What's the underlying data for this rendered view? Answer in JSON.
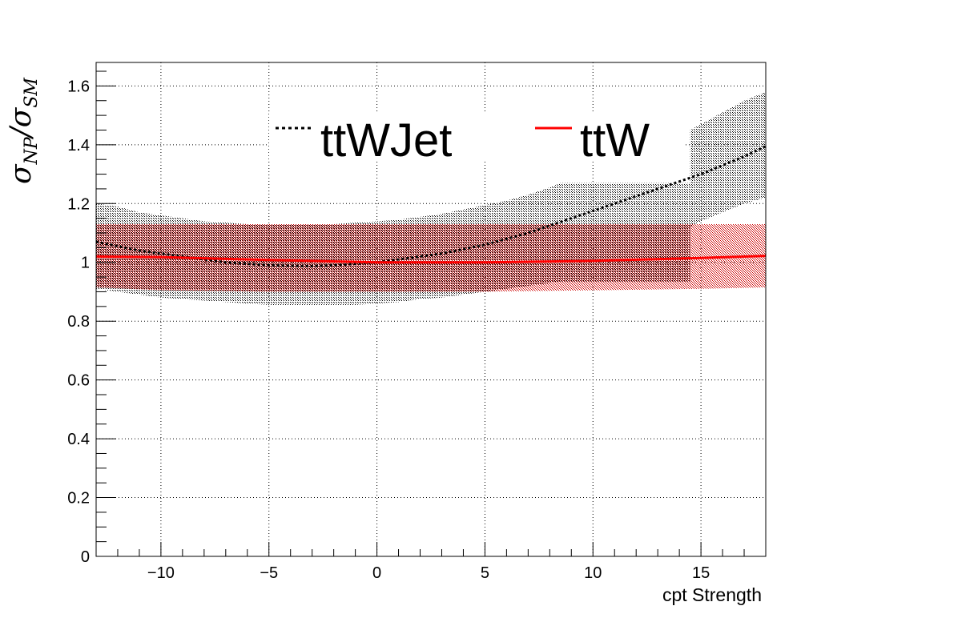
{
  "chart_data": {
    "type": "line",
    "xlabel": "cpt Strength",
    "ylabel": {
      "symbol": "σ",
      "sub1": "NP",
      "slash": "/",
      "sub2": "SM"
    },
    "xlim": [
      -13,
      18
    ],
    "ylim": [
      0,
      1.68
    ],
    "x_ticks": [
      -10,
      -5,
      0,
      5,
      10,
      15
    ],
    "x_tick_labels": [
      "−10",
      "−5",
      "0",
      "5",
      "10",
      "15"
    ],
    "y_ticks": [
      0,
      0.2,
      0.4,
      0.6,
      0.8,
      1,
      1.2,
      1.4,
      1.6
    ],
    "y_tick_labels": [
      "0",
      "0.2",
      "0.4",
      "0.6",
      "0.8",
      "1",
      "1.2",
      "1.4",
      "1.6"
    ],
    "grid": true,
    "legend_position": "top",
    "series": [
      {
        "name": "ttWJet",
        "color": "#000000",
        "line_style": "dotted",
        "band_color": "#000000",
        "x": [
          -13,
          -12,
          -11,
          -10,
          -9,
          -8,
          -7,
          -6,
          -5,
          -4,
          -3,
          -2,
          -1,
          0,
          1,
          2,
          3,
          4,
          5,
          6,
          7,
          8,
          9,
          10,
          11,
          12,
          13,
          14,
          15,
          16,
          17,
          18
        ],
        "values": [
          1.07,
          1.055,
          1.04,
          1.03,
          1.02,
          1.01,
          1.0,
          0.995,
          0.99,
          0.988,
          0.987,
          0.99,
          0.995,
          1.0,
          1.01,
          1.02,
          1.03,
          1.045,
          1.06,
          1.08,
          1.1,
          1.125,
          1.15,
          1.175,
          1.2,
          1.225,
          1.25,
          1.275,
          1.3,
          1.33,
          1.36,
          1.395
        ],
        "band_x": [
          -13,
          -12,
          -11,
          -10,
          -9,
          -8,
          -7,
          -6,
          -5,
          -4,
          -3,
          -2,
          -1,
          0,
          1,
          2,
          3,
          4,
          5,
          6,
          7,
          8,
          8.5,
          14.5,
          14.5,
          15,
          16,
          17,
          18
        ],
        "band_upper": [
          1.2,
          1.19,
          1.17,
          1.16,
          1.15,
          1.14,
          1.135,
          1.13,
          1.13,
          1.13,
          1.13,
          1.13,
          1.135,
          1.14,
          1.145,
          1.155,
          1.165,
          1.18,
          1.195,
          1.21,
          1.23,
          1.255,
          1.27,
          1.27,
          1.45,
          1.47,
          1.51,
          1.55,
          1.58
        ],
        "band_lower": [
          0.91,
          0.9,
          0.89,
          0.88,
          0.875,
          0.87,
          0.865,
          0.86,
          0.855,
          0.855,
          0.855,
          0.855,
          0.855,
          0.86,
          0.865,
          0.875,
          0.88,
          0.89,
          0.9,
          0.91,
          0.92,
          0.93,
          0.935,
          0.935,
          1.12,
          1.14,
          1.17,
          1.2,
          1.22
        ]
      },
      {
        "name": "ttW",
        "color": "#ff0000",
        "line_style": "solid",
        "band_color": "#cc0000",
        "x": [
          -13,
          -10,
          -5,
          0,
          5,
          10,
          15,
          18
        ],
        "values": [
          1.02,
          1.018,
          1.008,
          1.0,
          1.0,
          1.005,
          1.015,
          1.022
        ],
        "band_x": [
          -13,
          -10,
          -5,
          0,
          5,
          10,
          15,
          18
        ],
        "band_upper": [
          1.13,
          1.13,
          1.13,
          1.13,
          1.13,
          1.13,
          1.13,
          1.13
        ],
        "band_lower": [
          0.915,
          0.905,
          0.9,
          0.9,
          0.9,
          0.905,
          0.91,
          0.915
        ]
      }
    ]
  }
}
